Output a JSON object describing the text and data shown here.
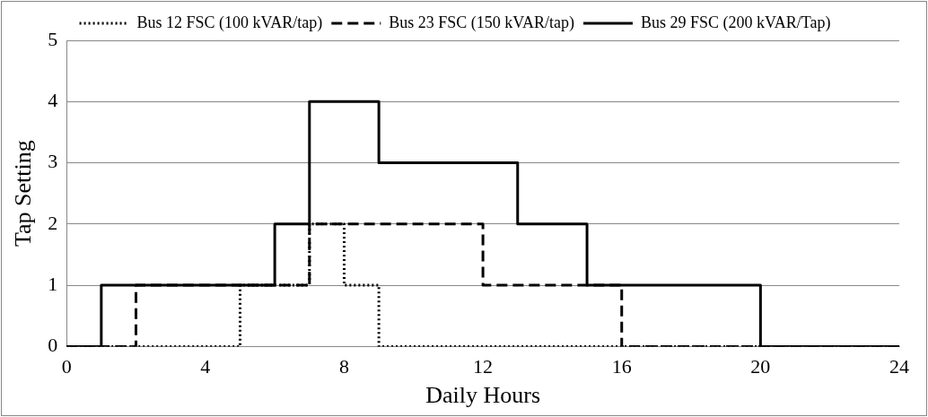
{
  "chart_data": {
    "type": "step",
    "xlabel": "Daily Hours",
    "ylabel": "Tap Setting",
    "xlim": [
      0,
      24
    ],
    "xticks": [
      0,
      4,
      8,
      12,
      16,
      20,
      24
    ],
    "ylim": [
      0,
      5
    ],
    "yticks": [
      0,
      1,
      2,
      3,
      4,
      5
    ],
    "grid": "y",
    "legend": "top",
    "series": [
      {
        "name": "Bus 12 FSC (100 kVAR/tap)",
        "color": "#000000",
        "line_style": "dotted",
        "x": [
          0,
          5,
          7,
          8,
          9,
          24
        ],
        "values": [
          0,
          1,
          2,
          1,
          0,
          0
        ]
      },
      {
        "name": "Bus 23 FSC (150 kVAR/tap)",
        "color": "#000000",
        "line_style": "dashed",
        "x": [
          0,
          2,
          7,
          12,
          16,
          24
        ],
        "values": [
          0,
          1,
          2,
          1,
          0,
          0
        ]
      },
      {
        "name": "Bus 29 FSC (200 kVAR/Tap)",
        "color": "#000000",
        "line_style": "solid",
        "x": [
          0,
          1,
          6,
          7,
          9,
          13,
          15,
          20,
          24
        ],
        "values": [
          0,
          1,
          2,
          4,
          3,
          2,
          1,
          0,
          0
        ]
      }
    ]
  }
}
